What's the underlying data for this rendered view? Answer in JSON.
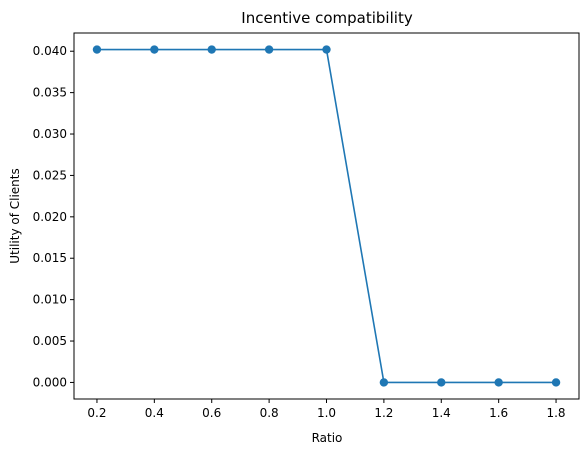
{
  "chart_data": {
    "type": "line",
    "title": "Incentive compatibility",
    "xlabel": "Ratio",
    "ylabel": "Utility of Clients",
    "x": [
      0.2,
      0.4,
      0.6,
      0.8,
      1.0,
      1.2,
      1.4,
      1.6,
      1.8
    ],
    "series": [
      {
        "values": [
          0.0402,
          0.0402,
          0.0402,
          0.0402,
          0.0402,
          0.0,
          0.0,
          0.0,
          0.0
        ],
        "color": "#1f77b4",
        "marker": "circle"
      }
    ],
    "xlim": [
      0.12,
      1.88
    ],
    "ylim": [
      -0.002,
      0.0422
    ],
    "xticks": [
      "0.2",
      "0.4",
      "0.6",
      "0.8",
      "1.0",
      "1.2",
      "1.4",
      "1.6",
      "1.8"
    ],
    "yticks": [
      "0.000",
      "0.005",
      "0.010",
      "0.015",
      "0.020",
      "0.025",
      "0.030",
      "0.035",
      "0.040"
    ],
    "grid": false,
    "legend": "none"
  }
}
